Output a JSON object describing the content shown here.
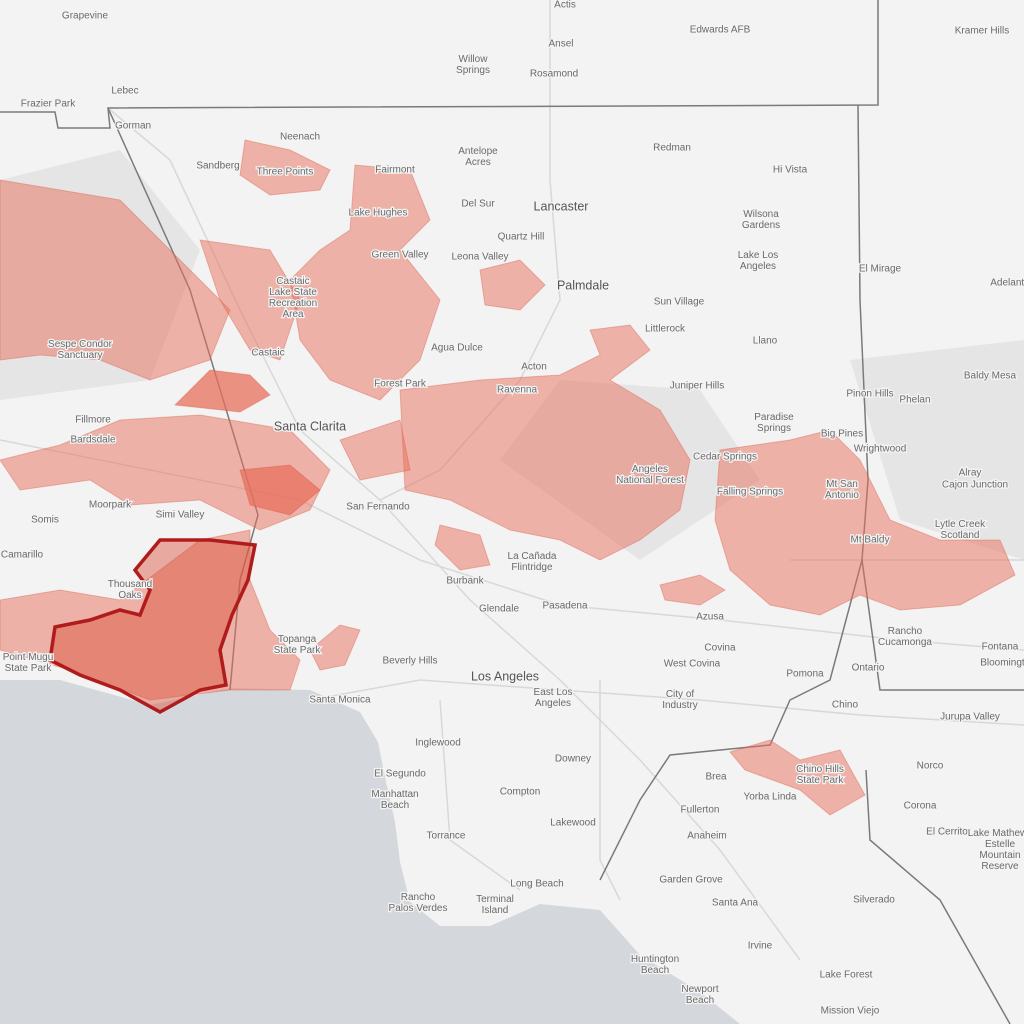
{
  "places": [
    [
      "Grapevine"
    ],
    [
      "Actis"
    ],
    [
      "Edwards AFB"
    ],
    [
      "Kramer Hills"
    ],
    [
      "Lebec"
    ],
    [
      "Frazier Park"
    ],
    [
      "Willow",
      "Springs"
    ],
    [
      "Ansel"
    ],
    [
      "Rosamond"
    ],
    [
      "Gorman"
    ],
    [
      "Neenach"
    ],
    [
      "Sandberg"
    ],
    [
      "Antelope",
      "Acres"
    ],
    [
      "Redman"
    ],
    [
      "Hi Vista"
    ],
    [
      "Three Points"
    ],
    [
      "Fairmont"
    ],
    [
      "Del Sur"
    ],
    [
      "Lancaster"
    ],
    [
      "Wilsona",
      "Gardens"
    ],
    [
      "Lake Hughes"
    ],
    [
      "Quartz Hill"
    ],
    [
      "Leona Valley"
    ],
    [
      "Green Valley"
    ],
    [
      "Lake Los",
      "Angeles"
    ],
    [
      "El Mirage"
    ],
    [
      "Adelanto"
    ],
    [
      "Palmdale"
    ],
    [
      "Sun Village"
    ],
    [
      "Castaic",
      "Lake State",
      "Recreation",
      "Area"
    ],
    [
      "Littlerock"
    ],
    [
      "Llano"
    ],
    [
      "Sespe Condor",
      "Sanctuary"
    ],
    [
      "Castaic"
    ],
    [
      "Agua Dulce"
    ],
    [
      "Acton"
    ],
    [
      "Juniper Hills"
    ],
    [
      "Baldy Mesa"
    ],
    [
      "Pinon Hills"
    ],
    [
      "Phelan"
    ],
    [
      "Forest Park"
    ],
    [
      "Ravenna"
    ],
    [
      "Fillmore"
    ],
    [
      "Paradise",
      "Springs"
    ],
    [
      "Santa Clarita"
    ],
    [
      "Big Pines"
    ],
    [
      "Wrightwood"
    ],
    [
      "Bardsdale"
    ],
    [
      "Cedar Springs"
    ],
    [
      "Alray"
    ],
    [
      "Cajon Junction"
    ],
    [
      "Angeles",
      "National Forest"
    ],
    [
      "Falling Springs"
    ],
    [
      "Mt San",
      "Antonio"
    ],
    [
      "Moorpark"
    ],
    [
      "Somis"
    ],
    [
      "Simi Valley"
    ],
    [
      "San Fernando"
    ],
    [
      "Lytle Creek",
      "Scotland"
    ],
    [
      "Camarillo"
    ],
    [
      "Mt Baldy"
    ],
    [
      "La Cañada",
      "Flintridge"
    ],
    [
      "Burbank"
    ],
    [
      "Thousand",
      "Oaks"
    ],
    [
      "Glendale"
    ],
    [
      "Pasadena"
    ],
    [
      "Azusa"
    ],
    [
      "Rancho",
      "Cucamonga"
    ],
    [
      "Fontana"
    ],
    [
      "Covina"
    ],
    [
      "Topanga",
      "State Park"
    ],
    [
      "Point Mugu",
      "State Park"
    ],
    [
      "Beverly Hills"
    ],
    [
      "West Covina"
    ],
    [
      "Ontario"
    ],
    [
      "Bloomington"
    ],
    [
      "Los Angeles"
    ],
    [
      "Pomona"
    ],
    [
      "East Los",
      "Angeles"
    ],
    [
      "City of",
      "Industry"
    ],
    [
      "Santa Monica"
    ],
    [
      "Chino"
    ],
    [
      "Jurupa Valley"
    ],
    [
      "Inglewood"
    ],
    [
      "Downey"
    ],
    [
      "Norco"
    ],
    [
      "Brea"
    ],
    [
      "Chino Hills",
      "State Park"
    ],
    [
      "Yorba Linda"
    ],
    [
      "El Segundo"
    ],
    [
      "Manhattan",
      "Beach"
    ],
    [
      "Compton"
    ],
    [
      "Corona"
    ],
    [
      "Fullerton"
    ],
    [
      "Anaheim"
    ],
    [
      "Torrance"
    ],
    [
      "Lakewood"
    ],
    [
      "El Cerrito"
    ],
    [
      "Lake Mathews",
      "Estelle",
      "Mountain",
      "Reserve"
    ],
    [
      "Garden Grove"
    ],
    [
      "Long Beach"
    ],
    [
      "Terminal",
      "Island"
    ],
    [
      "Santa Ana"
    ],
    [
      "Silverado"
    ],
    [
      "Rancho",
      "Palos Verdes"
    ],
    [
      "Irvine"
    ],
    [
      "Huntington",
      "Beach"
    ],
    [
      "Lake Forest"
    ],
    [
      "Newport",
      "Beach"
    ],
    [
      "Mission Viejo"
    ]
  ]
}
